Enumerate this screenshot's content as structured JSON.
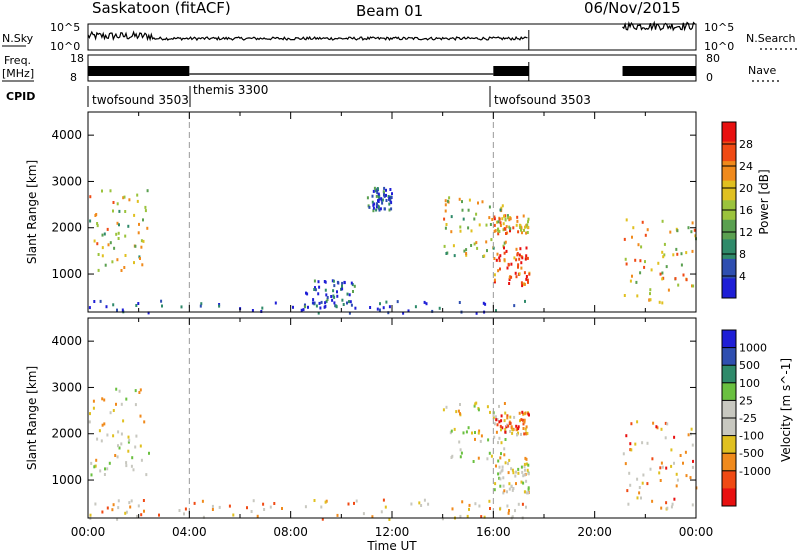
{
  "header": {
    "station": "Saskatoon (fitACF)",
    "beam": "Beam 01",
    "date": "06/Nov/2015"
  },
  "colors": {
    "power": [
      "#1f1fd6",
      "#2f4fb0",
      "#2f8a6a",
      "#5aa050",
      "#9bc33c",
      "#e0c020",
      "#f08a1c",
      "#f04a14",
      "#e81010"
    ],
    "velocity": [
      "#e81010",
      "#f04a14",
      "#f08a1c",
      "#e0c020",
      "#c8c8c0",
      "#c8c8c0",
      "#6ac040",
      "#2f8a6a",
      "#2f4fb0",
      "#1f1fd6"
    ]
  },
  "chart_data": [
    {
      "type": "line",
      "name": "noise-panel",
      "left_label": "N.Sky",
      "right_label": "N.Search",
      "left_ticks": [
        "10^5",
        "10^0"
      ],
      "right_ticks": [
        "10^5",
        "10^0"
      ],
      "segments_hours": [
        [
          0.0,
          17.4
        ],
        [
          21.1,
          24.0
        ]
      ]
    },
    {
      "type": "line",
      "name": "freq-nave-panel",
      "left_label_1": "Freq.",
      "left_label_2": "[MHz]",
      "left_ticks": [
        "18",
        "8"
      ],
      "right_label": "Nave",
      "right_ticks": [
        "80",
        "0"
      ],
      "segments_hours": [
        [
          0.0,
          17.4
        ],
        [
          21.1,
          24.0
        ]
      ]
    },
    {
      "type": "table",
      "name": "cpid-panel",
      "label": "CPID",
      "modes": [
        {
          "name": "twofsound 3503",
          "start_hour": 0.0
        },
        {
          "name": "themis 3300",
          "start_hour": 4.0
        },
        {
          "name": "twofsound 3503",
          "start_hour": 16.0
        }
      ]
    },
    {
      "type": "heatmap",
      "name": "power",
      "ylabel": "Slant Range [km]",
      "ylim": [
        180,
        4500
      ],
      "xlim": [
        0,
        24
      ],
      "yticks": [
        1000,
        2000,
        3000,
        4000
      ],
      "colorbar": {
        "label": "Power [dB]",
        "range": [
          0,
          32
        ],
        "ticks": [
          "4",
          "8",
          "12",
          "16",
          "20",
          "24",
          "28"
        ]
      },
      "regions": [
        {
          "x": [
            0.0,
            2.4
          ],
          "y": [
            1100,
            2900
          ],
          "level": 0.55
        },
        {
          "x": [
            0.0,
            17.4
          ],
          "y": [
            180,
            450
          ],
          "level": 0.1
        },
        {
          "x": [
            8.5,
            10.5
          ],
          "y": [
            300,
            900
          ],
          "level": 0.15
        },
        {
          "x": [
            11.0,
            12.0
          ],
          "y": [
            2400,
            2900
          ],
          "level": 0.15
        },
        {
          "x": [
            14.0,
            16.5
          ],
          "y": [
            1400,
            2700
          ],
          "level": 0.55
        },
        {
          "x": [
            16.0,
            17.4
          ],
          "y": [
            750,
            1600
          ],
          "level": 0.85
        },
        {
          "x": [
            16.0,
            17.4
          ],
          "y": [
            1900,
            2300
          ],
          "level": 0.65
        },
        {
          "x": [
            21.1,
            24.0
          ],
          "y": [
            400,
            2300
          ],
          "level": 0.6
        }
      ]
    },
    {
      "type": "heatmap",
      "name": "velocity",
      "ylabel": "Slant Range [km]",
      "xlabel": "Time UT",
      "ylim": [
        180,
        4500
      ],
      "xlim": [
        0,
        24
      ],
      "yticks": [
        1000,
        2000,
        3000,
        4000
      ],
      "xticks": [
        "00:00",
        "04:00",
        "08:00",
        "12:00",
        "16:00",
        "20:00",
        "00:00"
      ],
      "xtick_hours": [
        0,
        4,
        8,
        12,
        16,
        20,
        24
      ],
      "colorbar": {
        "label": "Velocity [m s^-1]",
        "ticks": [
          "1000",
          "500",
          "100",
          "25",
          "-25",
          "-100",
          "-500",
          "-1000"
        ]
      },
      "regions": [
        {
          "x": [
            0.0,
            2.4
          ],
          "y": [
            1100,
            3000
          ],
          "level": 0.45
        },
        {
          "x": [
            0.0,
            17.4
          ],
          "y": [
            180,
            600
          ],
          "level": 0.35
        },
        {
          "x": [
            14.0,
            16.5
          ],
          "y": [
            1400,
            2700
          ],
          "level": 0.45
        },
        {
          "x": [
            16.0,
            17.4
          ],
          "y": [
            2000,
            2500
          ],
          "level": 0.2
        },
        {
          "x": [
            16.0,
            17.4
          ],
          "y": [
            750,
            1500
          ],
          "level": 0.45
        },
        {
          "x": [
            21.1,
            24.0
          ],
          "y": [
            400,
            2300
          ],
          "level": 0.3
        }
      ]
    }
  ]
}
